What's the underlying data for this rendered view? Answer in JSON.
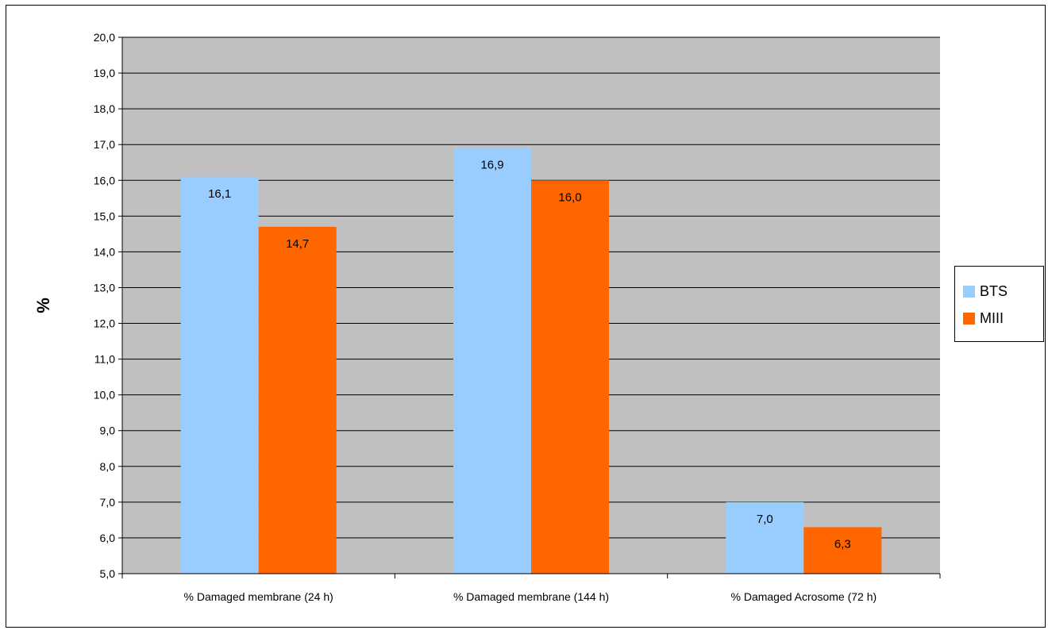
{
  "chart_data": {
    "type": "bar",
    "categories": [
      "% Damaged membrane (24 h)",
      "% Damaged membrane (144 h)",
      "% Damaged Acrosome (72 h)"
    ],
    "series": [
      {
        "name": "BTS",
        "values": [
          16.1,
          16.9,
          7.0
        ],
        "labels": [
          "16,1",
          "16,9",
          "7,0"
        ],
        "color": "#99CCFF"
      },
      {
        "name": "MIII",
        "values": [
          14.7,
          16.0,
          6.3
        ],
        "labels": [
          "14,7",
          "16,0",
          "6,3"
        ],
        "color": "#FF6600"
      }
    ],
    "ylabel": "%",
    "xlabel": "",
    "ylim": [
      5.0,
      20.0
    ],
    "ytick_step": 1.0,
    "yticks": [
      "5,0",
      "6,0",
      "7,0",
      "8,0",
      "9,0",
      "10,0",
      "11,0",
      "12,0",
      "13,0",
      "14,0",
      "15,0",
      "16,0",
      "17,0",
      "18,0",
      "19,0",
      "20,0"
    ],
    "grid": true,
    "plot_background": "#C0C0C0",
    "legend": {
      "position": "right"
    }
  }
}
